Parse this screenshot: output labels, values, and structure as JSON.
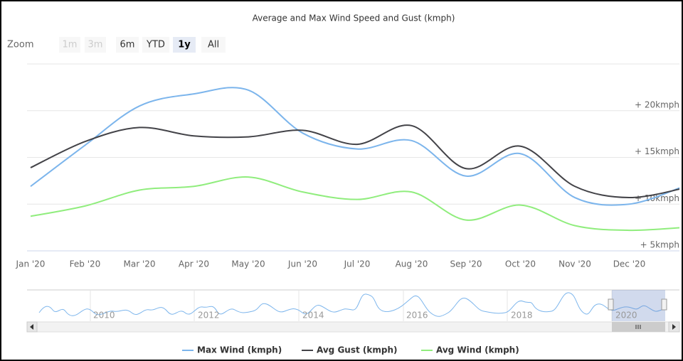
{
  "chart_data": {
    "type": "line",
    "title": "Average and Max Wind Speed and Gust (kmph)",
    "categories": [
      "Jan '20",
      "Feb '20",
      "Mar '20",
      "Apr '20",
      "May '20",
      "Jun '20",
      "Jul '20",
      "Aug '20",
      "Sep '20",
      "Oct '20",
      "Nov '20",
      "Dec '20",
      null
    ],
    "series": [
      {
        "name": "Max Wind (kmph)",
        "color": "#7cb5ec",
        "values": [
          11.9,
          16.3,
          20.5,
          21.8,
          22.2,
          17.6,
          15.9,
          16.8,
          13.0,
          15.4,
          10.7,
          10.0,
          11.9
        ]
      },
      {
        "name": "Avg Gust (kmph)",
        "color": "#434348",
        "values": [
          13.9,
          16.7,
          18.2,
          17.3,
          17.2,
          17.9,
          16.4,
          18.4,
          13.8,
          16.2,
          11.9,
          10.7,
          11.7
        ]
      },
      {
        "name": "Avg Wind (kmph)",
        "color": "#90ed7d",
        "values": [
          8.7,
          9.8,
          11.5,
          11.9,
          12.9,
          11.3,
          10.5,
          11.3,
          8.3,
          9.9,
          7.7,
          7.2,
          7.5
        ]
      }
    ],
    "ylim": [
      5,
      25
    ],
    "yticks": [
      {
        "value": 5,
        "label": "+ 5kmph"
      },
      {
        "value": 10,
        "label": "+ 10kmph"
      },
      {
        "value": 15,
        "label": "+ 15kmph"
      },
      {
        "value": 20,
        "label": "+ 20kmph"
      }
    ],
    "grid": true,
    "smooth": true,
    "legend": "bottom"
  },
  "range_selector": {
    "label": "Zoom",
    "buttons": [
      "1m",
      "3m",
      "6m",
      "YTD",
      "1y",
      "All"
    ]
  },
  "navigator": {
    "labels": [
      "2010",
      "2012",
      "2014",
      "2016",
      "2018",
      "2020"
    ]
  }
}
